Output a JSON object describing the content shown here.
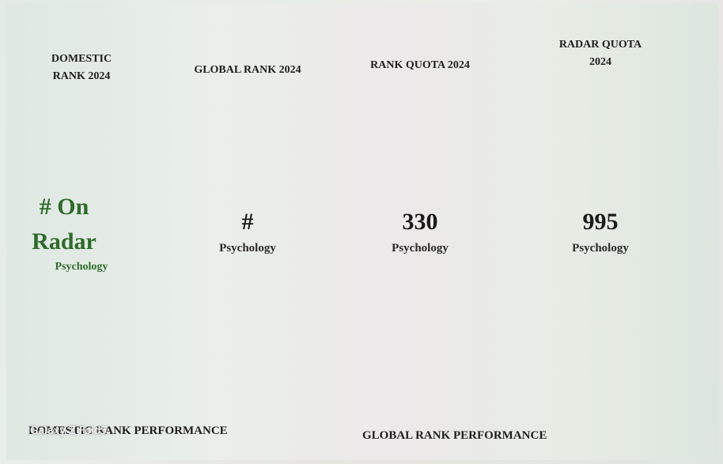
{
  "cards": [
    {
      "title": "DOMESTIC RANK 2024",
      "value": "# On Radar",
      "subject": "Psychology"
    },
    {
      "title": "GLOBAL RANK 2024",
      "value": "#",
      "subject": "Psychology"
    },
    {
      "title": "RANK QUOTA 2024",
      "value": 330,
      "subject": "Psychology"
    },
    {
      "title": "RADAR QUOTA 2024",
      "value": 995,
      "subject": "Psychology"
    }
  ],
  "sections": [
    "DOMESTIC RANK PERFORMANCE",
    "GLOBAL RANK PERFORMANCE"
  ],
  "watermark": "Galaxy Z Fold5"
}
